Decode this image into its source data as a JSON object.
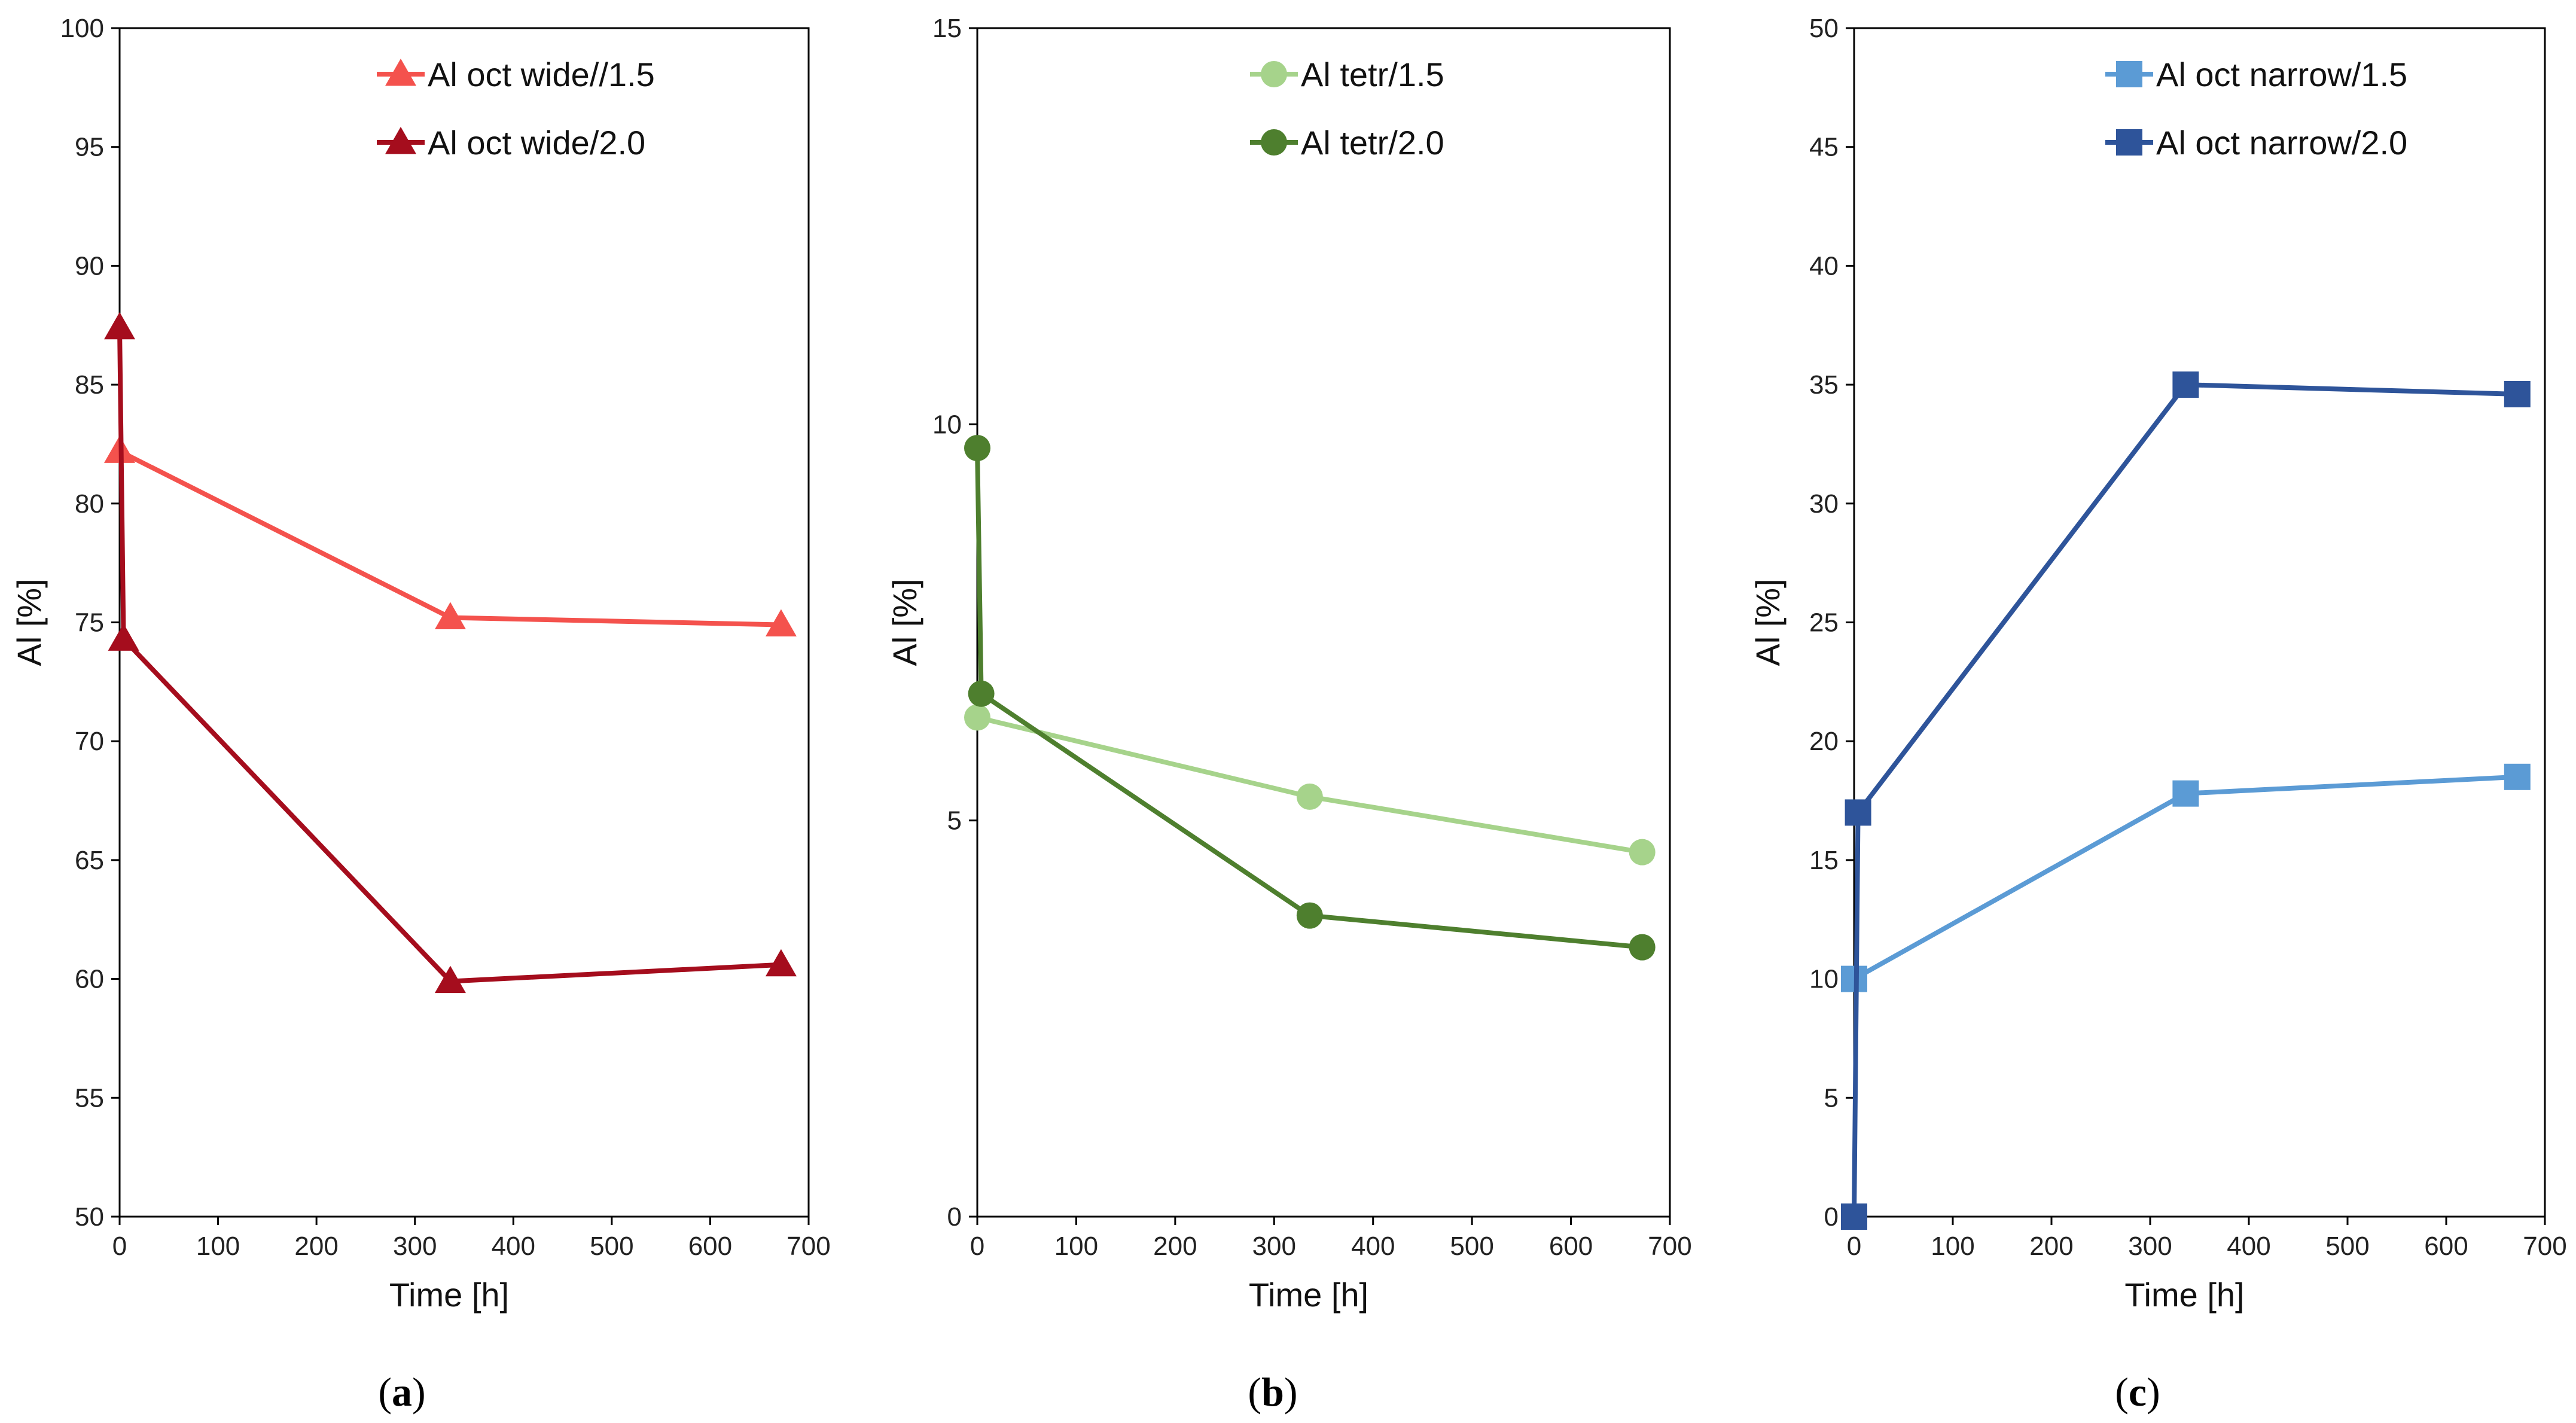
{
  "chart_data": [
    {
      "type": "line",
      "panel": "a",
      "caption": "(a)",
      "caption_letter": "a",
      "xlabel": "Time [h]",
      "ylabel": "Al [%]",
      "xlim": [
        0,
        700
      ],
      "ylim": [
        50,
        100
      ],
      "xticks": [
        0,
        100,
        200,
        300,
        400,
        500,
        600,
        700
      ],
      "yticks": [
        50,
        55,
        60,
        65,
        70,
        75,
        80,
        85,
        90,
        95,
        100
      ],
      "grid": false,
      "legend_position": "top-right",
      "series": [
        {
          "name": "Al oct wide//1.5",
          "color": "#f4524d",
          "marker": "triangle",
          "x": [
            0,
            336,
            672
          ],
          "y": [
            82.2,
            75.2,
            74.9
          ]
        },
        {
          "name": "Al oct wide/2.0",
          "color": "#a50d1d",
          "marker": "triangle",
          "x": [
            0,
            4,
            336,
            672
          ],
          "y": [
            87.4,
            74.3,
            59.9,
            60.6
          ]
        }
      ]
    },
    {
      "type": "line",
      "panel": "b",
      "caption": "(b)",
      "caption_letter": "b",
      "xlabel": "Time [h]",
      "ylabel": "Al [%]",
      "xlim": [
        0,
        700
      ],
      "ylim": [
        0,
        15
      ],
      "xticks": [
        0,
        100,
        200,
        300,
        400,
        500,
        600,
        700
      ],
      "yticks": [
        0,
        5,
        10,
        15
      ],
      "grid": false,
      "legend_position": "top-right",
      "series": [
        {
          "name": "Al tetr/1.5",
          "color": "#a6d38b",
          "marker": "circle",
          "x": [
            0,
            336,
            672
          ],
          "y": [
            6.3,
            5.3,
            4.6
          ]
        },
        {
          "name": "Al tetr/2.0",
          "color": "#4e7f2e",
          "marker": "circle",
          "x": [
            0,
            4,
            336,
            672
          ],
          "y": [
            9.7,
            6.6,
            3.8,
            3.4
          ]
        }
      ]
    },
    {
      "type": "line",
      "panel": "c",
      "caption": "(c)",
      "caption_letter": "c",
      "xlabel": "Time [h]",
      "ylabel": "Al [%]",
      "xlim": [
        0,
        700
      ],
      "ylim": [
        0,
        50
      ],
      "xticks": [
        0,
        100,
        200,
        300,
        400,
        500,
        600,
        700
      ],
      "yticks": [
        0,
        5,
        10,
        15,
        20,
        25,
        30,
        35,
        40,
        45,
        50
      ],
      "grid": false,
      "legend_position": "top-right",
      "series": [
        {
          "name": "Al oct narrow/1.5",
          "color": "#5b9bd5",
          "marker": "square",
          "x": [
            0,
            336,
            672
          ],
          "y": [
            10,
            17.8,
            18.5
          ]
        },
        {
          "name": "Al oct narrow/2.0",
          "color": "#2e549a",
          "marker": "square",
          "x": [
            0,
            4,
            336,
            672
          ],
          "y": [
            0,
            17,
            35,
            34.6
          ]
        }
      ]
    }
  ]
}
